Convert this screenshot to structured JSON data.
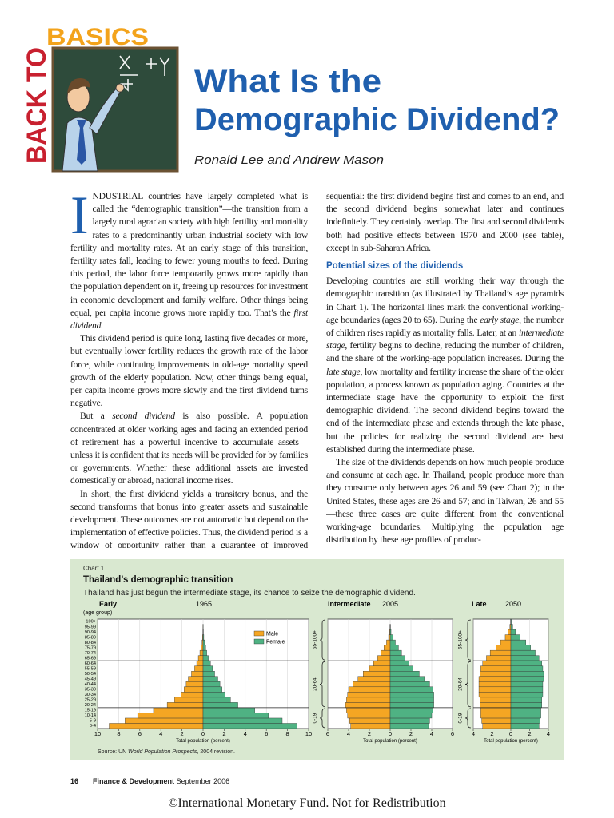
{
  "header": {
    "kicker_vertical": "BACK TO",
    "kicker": "BASICS",
    "title": [
      "What Is the",
      "Demographic Dividend?"
    ],
    "authors": "Ronald Lee and Andrew Mason"
  },
  "article": {
    "columns": [
      [
        {
          "drop_cap": "I",
          "runs": [
            "NDUSTRIAL countries have largely completed what is called the “demographic transition”—the transition from a largely rural agrarian society with high fertility and mortality rates to a predominantly urban industrial society with low fertility and mortality rates. At an early stage of this transition, fertility rates fall, leading to fewer young mouths to feed. During this period, the labor force temporarily grows more rapidly than the population dependent on it, freeing up resources for investment in economic development and family welfare. Other things being equal, per capita income grows more rapidly too. That’s the ",
            {
              "text": "first dividend.",
              "italic": true
            }
          ]
        },
        {
          "indent": true,
          "runs": [
            "This dividend period is quite long, lasting five decades or more, but eventually lower fertility reduces the growth rate of the labor force, while continuing improvements in old-age mortality speed growth of the elderly population. Now, other things being equal, per capita income grows more slowly and the first dividend turns negative."
          ]
        },
        {
          "indent": true,
          "runs": [
            "But a ",
            {
              "text": "second dividend",
              "italic": true
            },
            " is also possible. A population concentrated at older working ages and facing an extended period of retirement has a powerful incentive to accumulate assets—unless it is confident that its needs will be provided for by families or governments. Whether these additional assets are invested domestically or abroad, national income rises."
          ]
        },
        {
          "indent": true,
          "runs": [
            "In short, the first dividend yields a transitory bonus, and the second transforms that bonus into greater assets and sustainable development. These outcomes are not automatic but depend on the implementation of effective policies. Thus, the dividend period is a window of opportunity rather than a guarantee of improved standards of living. The dividends are"
          ]
        }
      ],
      [
        {
          "runs": [
            "sequential: the first dividend begins first and comes to an end, and the second dividend begins somewhat later and continues indefinitely. They certainly overlap. The first and second dividends both had positive effects between 1970 and 2000 (see table), except in sub-Saharan Africa."
          ]
        },
        {
          "heading": "Potential sizes of the dividends"
        },
        {
          "runs": [
            "Developing countries are still working their way through the demographic transition (as illustrated by Thailand’s age pyramids in Chart 1). The horizontal lines mark the conventional working-age boundaries (ages 20 to 65). During the ",
            {
              "text": "early stage",
              "italic": true
            },
            ", the number of children rises rapidly as mortality falls. Later, at an ",
            {
              "text": "intermediate stage",
              "italic": true
            },
            ", fertility begins to decline, reducing the number of children, and the share of the working-age population increases. During the ",
            {
              "text": "late stage",
              "italic": true
            },
            ", low mortality and fertility increase the share of the older population, a process known as population aging. Countries at the intermediate stage have the opportunity to exploit the first demographic dividend. The second dividend begins toward the end of the intermediate phase and extends through the late phase, but the policies for realizing the second dividend are best established during the intermediate phase."
          ]
        },
        {
          "indent": true,
          "runs": [
            "The size of the dividends depends on how much people produce and consume at each age. In Thailand, people produce more than they consume only between ages 26 and 59 (see Chart 2); in the United States, these ages are 26 and 57; and in Taiwan, 26 and 55—these three cases are quite different from the conventional working-age boundaries. Multiplying the population age distribution by these age profiles of produc-"
          ]
        }
      ]
    ]
  },
  "chart_box": {
    "label": "Chart 1",
    "title": "Thailand’s demographic transition",
    "subtitle": "Thailand has just begun the intermediate stage, its chance to seize the demographic dividend.",
    "source": [
      "Source: UN ",
      {
        "text": "World Population Prospects",
        "italic": true
      },
      ", 2004 revision."
    ]
  },
  "chart_data": [
    {
      "type": "pyramid",
      "title": "Early",
      "subtitle": "1965",
      "ylabel": "(age group)",
      "xlabel": "Total population (percent)",
      "categories": [
        "0-4",
        "5-9",
        "10-14",
        "15-19",
        "20-24",
        "25-29",
        "30-34",
        "35-39",
        "40-44",
        "45-49",
        "50-54",
        "55-59",
        "60-64",
        "65-69",
        "70-74",
        "75-79",
        "80-84",
        "85-89",
        "90-94",
        "95-99",
        "100+"
      ],
      "series": [
        {
          "name": "Male",
          "color": "#f5a623",
          "direction": "left",
          "values": [
            8.9,
            7.4,
            6.2,
            4.7,
            3.4,
            2.7,
            2.1,
            1.8,
            1.6,
            1.4,
            1.1,
            0.8,
            0.6,
            0.45,
            0.3,
            0.2,
            0.1,
            0.05,
            0.02,
            0.01,
            0
          ]
        },
        {
          "name": "Female",
          "color": "#4fb283",
          "direction": "right",
          "values": [
            8.9,
            7.5,
            6.2,
            4.9,
            3.3,
            2.6,
            2.1,
            1.8,
            1.6,
            1.4,
            1.1,
            0.9,
            0.7,
            0.5,
            0.35,
            0.25,
            0.15,
            0.07,
            0.03,
            0.01,
            0
          ]
        }
      ],
      "xlim": [
        -10,
        10
      ],
      "xticks": [
        {
          "value": -10,
          "label": "10"
        },
        {
          "value": -8,
          "label": "8"
        },
        {
          "value": -6,
          "label": "6"
        },
        {
          "value": -4,
          "label": "4"
        },
        {
          "value": -2,
          "label": "2"
        },
        0,
        2,
        4,
        6,
        8,
        10
      ],
      "boundaries": [
        20,
        65
      ],
      "legend": "upper right"
    },
    {
      "type": "pyramid",
      "title": "Intermediate",
      "subtitle": "2005",
      "xlabel": "Total population (percent)",
      "series": [
        {
          "color": "#f5a623",
          "direction": "left",
          "values": [
            3.8,
            3.9,
            4.1,
            4.2,
            4.3,
            4.2,
            4.1,
            4.0,
            3.6,
            3.1,
            2.6,
            2.0,
            1.6,
            1.2,
            0.9,
            0.6,
            0.35,
            0.15,
            0.05,
            0.02,
            0
          ]
        },
        {
          "color": "#4fb283",
          "direction": "right",
          "values": [
            3.7,
            3.8,
            4.0,
            4.1,
            4.2,
            4.2,
            4.2,
            4.1,
            3.8,
            3.3,
            2.8,
            2.2,
            1.8,
            1.4,
            1.1,
            0.8,
            0.5,
            0.25,
            0.08,
            0.03,
            0
          ]
        }
      ],
      "xlim": [
        -6,
        6
      ],
      "xticks": [
        {
          "value": -6,
          "label": "6"
        },
        {
          "value": -4,
          "label": "4"
        },
        {
          "value": -2,
          "label": "2"
        },
        0,
        2,
        4,
        6
      ],
      "boundaries": [
        20,
        65
      ],
      "age_brackets": [
        "0-19",
        "20-64",
        "65-100+"
      ]
    },
    {
      "type": "pyramid",
      "title": "Late",
      "subtitle": "2050",
      "xlabel": "Total population (percent)",
      "series": [
        {
          "color": "#f5a623",
          "direction": "left",
          "values": [
            3.0,
            3.1,
            3.2,
            3.2,
            3.3,
            3.3,
            3.4,
            3.4,
            3.4,
            3.4,
            3.3,
            3.2,
            3.0,
            2.6,
            2.2,
            1.6,
            1.1,
            0.6,
            0.3,
            0.1,
            0.03
          ]
        },
        {
          "color": "#4fb283",
          "direction": "right",
          "values": [
            3.0,
            3.1,
            3.2,
            3.2,
            3.3,
            3.3,
            3.4,
            3.4,
            3.4,
            3.5,
            3.5,
            3.4,
            3.3,
            3.0,
            2.6,
            2.1,
            1.6,
            1.0,
            0.5,
            0.2,
            0.05
          ]
        }
      ],
      "xlim": [
        -4,
        4
      ],
      "xticks": [
        {
          "value": -4,
          "label": "4"
        },
        {
          "value": -2,
          "label": "2"
        },
        0,
        2,
        4
      ],
      "boundaries": [
        20,
        65
      ],
      "age_brackets": [
        "0-19",
        "20-64",
        "65-100+"
      ]
    }
  ],
  "footer": {
    "page": "16",
    "publication": "Finance & Development",
    "date": "September 2006",
    "notice": "©International Monetary Fund. Not for Redistribution"
  }
}
